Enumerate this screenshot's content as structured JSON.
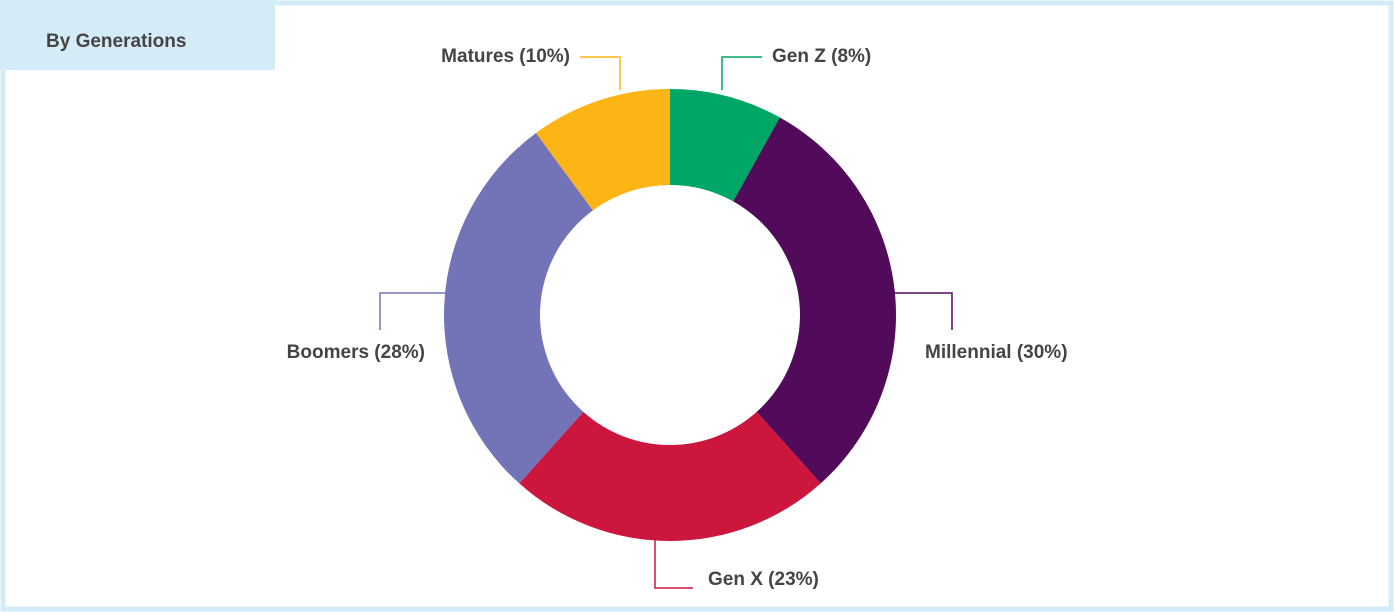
{
  "chart_data": {
    "type": "donut",
    "title": "By Generations",
    "categories": [
      "Gen Z (8%)",
      "Millennial (30%)",
      "Gen X (23%)",
      "Boomers (28%)",
      "Matures (10%)"
    ],
    "values": [
      8,
      30,
      23,
      28,
      10
    ],
    "colors": [
      "#00a665",
      "#520a5a",
      "#cc163e",
      "#7374b7",
      "#fdb515"
    ]
  }
}
